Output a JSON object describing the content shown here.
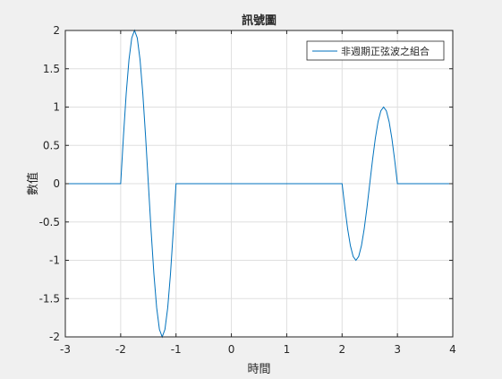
{
  "figure": {
    "background": "#f0f0f0"
  },
  "chart_data": {
    "type": "line",
    "title": "訊號圖",
    "xlabel": "時間",
    "ylabel": "數值",
    "xlim": [
      -3,
      4
    ],
    "ylim": [
      -2,
      2
    ],
    "grid": true,
    "legend_placement": "top-right",
    "x_ticks": [
      "-3",
      "-2",
      "-1",
      "0",
      "1",
      "2",
      "3",
      "4"
    ],
    "x_tick_values": [
      -3,
      -2,
      -1,
      0,
      1,
      2,
      3,
      4
    ],
    "y_ticks": [
      "-2",
      "-1.5",
      "-1",
      "-0.5",
      "0",
      "0.5",
      "1",
      "1.5",
      "2"
    ],
    "y_tick_values": [
      -2,
      -1.5,
      -1,
      -0.5,
      0,
      0.5,
      1,
      1.5,
      2
    ],
    "series": [
      {
        "name": "非週期正弦波之組合",
        "color": "#0072bd",
        "x": [
          -3,
          -2,
          -1.95,
          -1.9,
          -1.85,
          -1.8,
          -1.75,
          -1.7,
          -1.65,
          -1.6,
          -1.55,
          -1.5,
          -1.45,
          -1.4,
          -1.35,
          -1.3,
          -1.25,
          -1.2,
          -1.15,
          -1.1,
          -1.05,
          -1,
          2,
          2.05,
          2.1,
          2.15,
          2.2,
          2.25,
          2.3,
          2.35,
          2.4,
          2.45,
          2.5,
          2.55,
          2.6,
          2.65,
          2.7,
          2.75,
          2.8,
          2.85,
          2.9,
          2.95,
          3,
          4
        ],
        "y": [
          0,
          0,
          0.618,
          1.176,
          1.618,
          1.902,
          2,
          1.902,
          1.618,
          1.176,
          0.618,
          0,
          -0.618,
          -1.176,
          -1.618,
          -1.902,
          -2,
          -1.902,
          -1.618,
          -1.176,
          -0.618,
          0,
          0,
          -0.309,
          -0.588,
          -0.809,
          -0.951,
          -1,
          -0.951,
          -0.809,
          -0.588,
          -0.309,
          0,
          0.309,
          0.588,
          0.809,
          0.951,
          1,
          0.951,
          0.809,
          0.588,
          0.309,
          0,
          0
        ]
      }
    ]
  }
}
